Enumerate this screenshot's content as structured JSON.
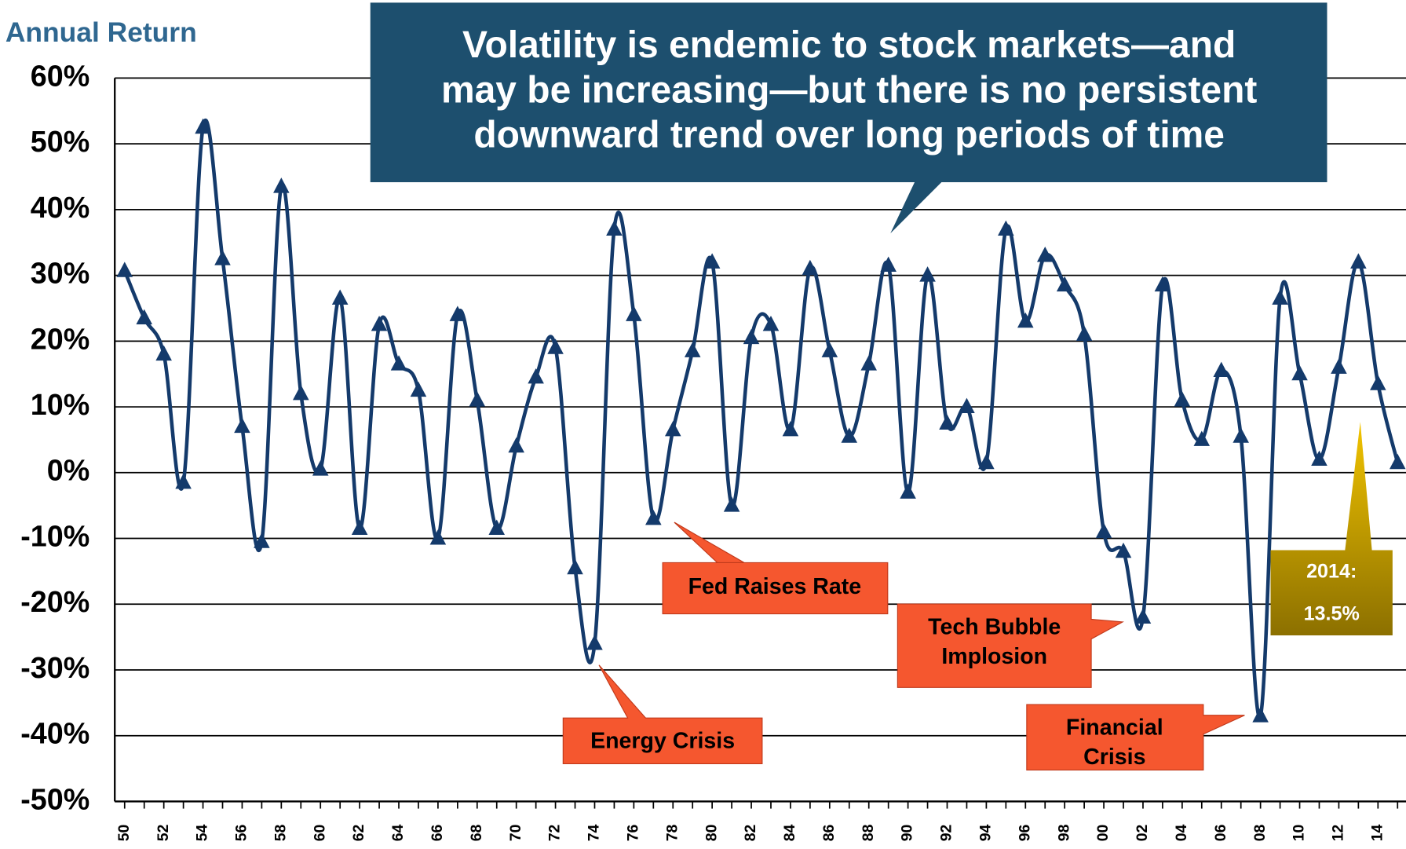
{
  "chart_data": {
    "type": "line",
    "title": [
      "Volatility is endemic to stock markets—and",
      "may be increasing—but there is no persistent",
      "downward trend over long periods of time"
    ],
    "y_label": "Annual Return",
    "categories": [
      "50",
      null,
      "52",
      null,
      "54",
      null,
      "56",
      null,
      "58",
      null,
      "60",
      null,
      "62",
      null,
      "64",
      null,
      "66",
      null,
      "68",
      null,
      "70",
      null,
      "72",
      null,
      "74",
      null,
      "76",
      null,
      "78",
      null,
      "80",
      null,
      "82",
      null,
      "84",
      null,
      "86",
      null,
      "88",
      null,
      "90",
      null,
      "92",
      null,
      "94",
      null,
      "96",
      null,
      "98",
      null,
      "00",
      null,
      "02",
      null,
      "04",
      null,
      "06",
      null,
      "08",
      null,
      "10",
      null,
      "12",
      null,
      "14",
      null
    ],
    "series": [
      {
        "name": "Annual Return",
        "color": "#143a6b",
        "values": [
          30.7,
          23.5,
          18,
          -1.5,
          52.5,
          32.5,
          7,
          -10.5,
          43.5,
          12,
          0.5,
          26.5,
          -8.5,
          22.5,
          16.5,
          12.5,
          -10,
          24,
          11,
          -8.5,
          4,
          14.5,
          19,
          -14.5,
          -26,
          37,
          24,
          -7,
          6.5,
          18.5,
          32,
          -5,
          20.5,
          22.5,
          6.5,
          31,
          18.5,
          5.5,
          16.5,
          31.5,
          -3,
          30,
          7.5,
          10,
          1.5,
          37,
          23,
          33,
          28.5,
          21,
          -9,
          -12,
          -22,
          28.5,
          11,
          5,
          15.5,
          5.5,
          -37,
          26.5,
          15,
          2,
          16,
          32,
          13.5,
          1.5
        ]
      }
    ],
    "ylim": [
      -50,
      60
    ],
    "yticks": [
      {
        "value": -50,
        "label": "-50%"
      },
      {
        "value": -40,
        "label": "-40%"
      },
      {
        "value": -30,
        "label": "-30%"
      },
      {
        "value": -20,
        "label": "-20%"
      },
      {
        "value": -10,
        "label": "-10%"
      },
      {
        "value": 0,
        "label": "0%"
      },
      {
        "value": 10,
        "label": "10%"
      },
      {
        "value": 20,
        "label": "20%"
      },
      {
        "value": 30,
        "label": "30%"
      },
      {
        "value": 40,
        "label": "40%"
      },
      {
        "value": 50,
        "label": "50%"
      },
      {
        "value": 60,
        "label": "60%"
      }
    ],
    "grid": true,
    "annotations": [
      {
        "lines": [
          "Fed Raises Rate"
        ]
      },
      {
        "lines": [
          "Energy Crisis"
        ]
      },
      {
        "lines": [
          "Tech Bubble",
          "Implosion"
        ]
      },
      {
        "lines": [
          "Financial",
          "Crisis"
        ]
      },
      {
        "lines": [
          "2014:",
          "13.5%"
        ]
      }
    ]
  }
}
